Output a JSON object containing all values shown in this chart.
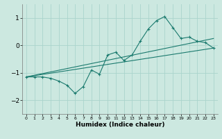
{
  "xlabel": "Humidex (Indice chaleur)",
  "ylabel": "",
  "bg_color": "#cce8e0",
  "line_color": "#1a7a6e",
  "grid_color": "#aad4cc",
  "xlim": [
    -0.5,
    23.5
  ],
  "ylim": [
    -2.5,
    1.5
  ],
  "xticks": [
    0,
    1,
    2,
    3,
    4,
    5,
    6,
    7,
    8,
    9,
    10,
    11,
    12,
    13,
    14,
    15,
    16,
    17,
    18,
    19,
    20,
    21,
    22,
    23
  ],
  "yticks": [
    -2,
    -1,
    0,
    1
  ],
  "data_x": [
    0,
    1,
    2,
    3,
    4,
    5,
    6,
    7,
    8,
    9,
    10,
    11,
    12,
    13,
    14,
    15,
    16,
    17,
    18,
    19,
    20,
    21,
    22,
    23
  ],
  "data_y": [
    -1.15,
    -1.15,
    -1.15,
    -1.2,
    -1.3,
    -1.45,
    -1.75,
    -1.5,
    -0.9,
    -1.05,
    -0.35,
    -0.25,
    -0.55,
    -0.35,
    0.15,
    0.6,
    0.9,
    1.05,
    0.65,
    0.25,
    0.3,
    0.15,
    0.1,
    -0.1
  ],
  "line1_x": [
    0,
    23
  ],
  "line1_y": [
    -1.15,
    -0.1
  ],
  "line2_x": [
    0,
    23
  ],
  "line2_y": [
    -1.15,
    0.25
  ]
}
